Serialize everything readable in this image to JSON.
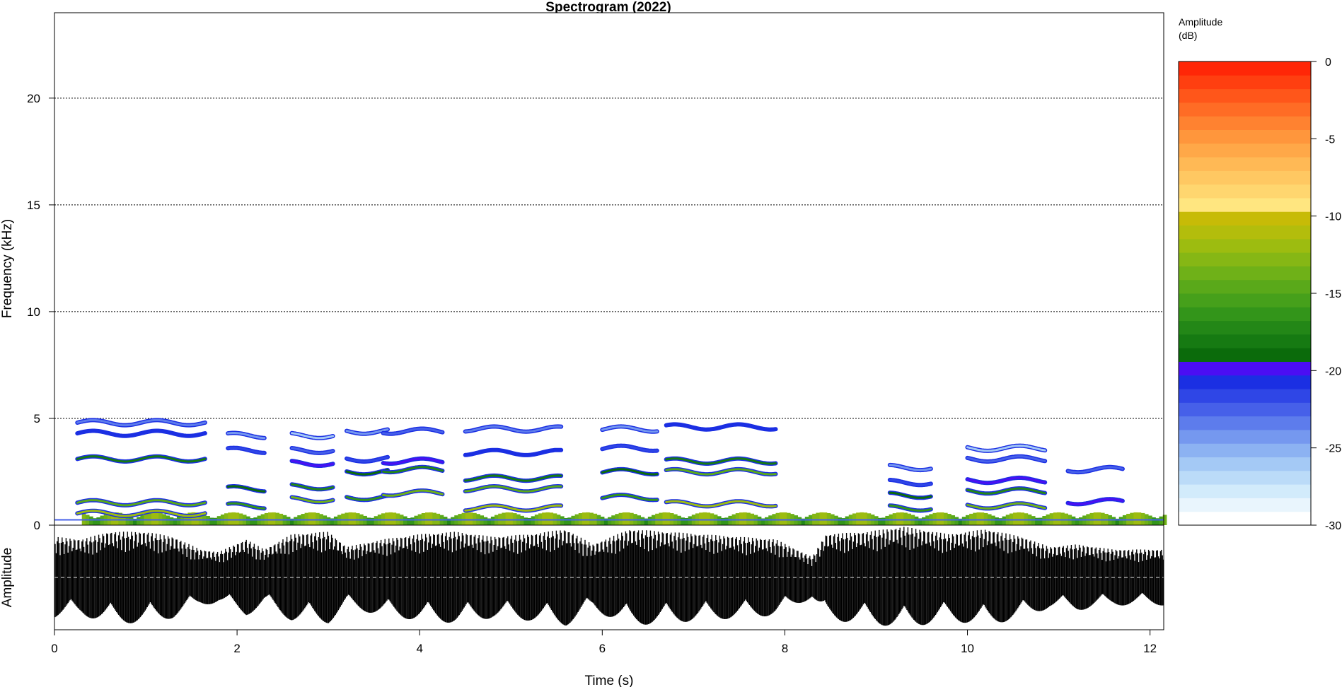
{
  "chart_data": [
    {
      "type": "heatmap",
      "title": "Spectrogram (2022)",
      "ylabel": "Frequency (kHz)",
      "xlabel": "Time (s)",
      "xlim": [
        0,
        12.15
      ],
      "ylim": [
        0,
        24
      ],
      "yticks": [
        "0",
        "5",
        "10",
        "15",
        "20"
      ],
      "xticks": [
        "0",
        "2",
        "4",
        "6",
        "8",
        "10",
        "12"
      ],
      "grid": "horizontal dotted at 5, 10, 15, 20 kHz",
      "harmonic_tracks": [
        {
          "t0": 0.25,
          "t1": 1.65,
          "f": [
            0.55,
            1.05,
            3.1,
            4.3,
            4.8
          ],
          "level": -12
        },
        {
          "t0": 1.9,
          "t1": 2.3,
          "f": [
            0.9,
            1.7,
            3.5,
            4.2
          ],
          "level": -16
        },
        {
          "t0": 2.6,
          "t1": 3.05,
          "f": [
            1.2,
            1.8,
            2.9,
            3.5,
            4.2
          ],
          "level": -14
        },
        {
          "t0": 3.2,
          "t1": 3.65,
          "f": [
            1.3,
            2.5,
            3.1,
            4.4
          ],
          "level": -16
        },
        {
          "t0": 3.6,
          "t1": 4.25,
          "f": [
            1.5,
            2.6,
            3.0,
            4.4
          ],
          "level": -14
        },
        {
          "t0": 4.5,
          "t1": 5.55,
          "f": [
            0.8,
            1.7,
            2.2,
            3.4,
            4.5
          ],
          "level": -12
        },
        {
          "t0": 6.0,
          "t1": 6.6,
          "f": [
            1.3,
            2.5,
            3.6,
            4.5
          ],
          "level": -16
        },
        {
          "t0": 6.7,
          "t1": 7.9,
          "f": [
            1.0,
            2.5,
            3.0,
            4.6
          ],
          "level": -12
        },
        {
          "t0": 9.15,
          "t1": 9.6,
          "f": [
            0.8,
            1.4,
            2.0,
            2.7
          ],
          "level": -16
        },
        {
          "t0": 10.0,
          "t1": 10.85,
          "f": [
            0.9,
            1.6,
            2.1,
            3.1,
            3.6
          ],
          "level": -14
        },
        {
          "t0": 11.1,
          "t1": 11.7,
          "f": [
            1.1,
            2.6
          ],
          "level": -20
        }
      ],
      "low_band": {
        "f": [
          0,
          0.6
        ],
        "level": -12
      },
      "colorbar": {
        "label_line1": "Amplitude",
        "label_line2": "(dB)",
        "range": [
          -30,
          0
        ],
        "ticks": [
          "0",
          "-5",
          "-10",
          "-15",
          "-20",
          "-25",
          "-30"
        ],
        "colors": [
          "#ffffff",
          "#e9f5fd",
          "#d2ebfb",
          "#bbdbf8",
          "#a4c9f5",
          "#8cb2f2",
          "#7598ef",
          "#5d7cec",
          "#4660e9",
          "#2f46e6",
          "#1b2fe3",
          "#4b0ef3",
          "#0b6b0b",
          "#167a12",
          "#238717",
          "#33951a",
          "#46a01b",
          "#5aa91a",
          "#6fb118",
          "#86b715",
          "#9dbc10",
          "#b3bd0c",
          "#c7bb07",
          "#ffe680",
          "#ffd66f",
          "#ffc862",
          "#ffb955",
          "#ffa848",
          "#ff963c",
          "#ff8230",
          "#ff6c25",
          "#ff561a",
          "#ff3f10",
          "#ff2707"
        ]
      }
    },
    {
      "type": "line",
      "ylabel": "Amplitude",
      "xlim": [
        0,
        12.15
      ],
      "envelope": [
        [
          0,
          0.8
        ],
        [
          0.3,
          0.75
        ],
        [
          0.6,
          0.9
        ],
        [
          1.0,
          0.9
        ],
        [
          1.3,
          0.8
        ],
        [
          1.6,
          0.55
        ],
        [
          1.8,
          0.5
        ],
        [
          2.1,
          0.75
        ],
        [
          2.3,
          0.55
        ],
        [
          2.6,
          0.85
        ],
        [
          3.0,
          0.9
        ],
        [
          3.2,
          0.6
        ],
        [
          3.6,
          0.75
        ],
        [
          4.0,
          0.85
        ],
        [
          4.4,
          0.9
        ],
        [
          4.8,
          0.8
        ],
        [
          5.2,
          0.85
        ],
        [
          5.6,
          0.95
        ],
        [
          5.9,
          0.65
        ],
        [
          6.3,
          0.95
        ],
        [
          6.7,
          0.9
        ],
        [
          7.1,
          0.85
        ],
        [
          7.5,
          0.8
        ],
        [
          7.9,
          0.75
        ],
        [
          8.3,
          0.4
        ],
        [
          8.45,
          0.85
        ],
        [
          8.9,
          0.9
        ],
        [
          9.3,
          1.0
        ],
        [
          9.8,
          0.85
        ],
        [
          10.2,
          0.95
        ],
        [
          10.6,
          0.8
        ],
        [
          10.9,
          0.6
        ],
        [
          11.2,
          0.65
        ],
        [
          11.6,
          0.55
        ],
        [
          12.15,
          0.55
        ]
      ]
    }
  ]
}
